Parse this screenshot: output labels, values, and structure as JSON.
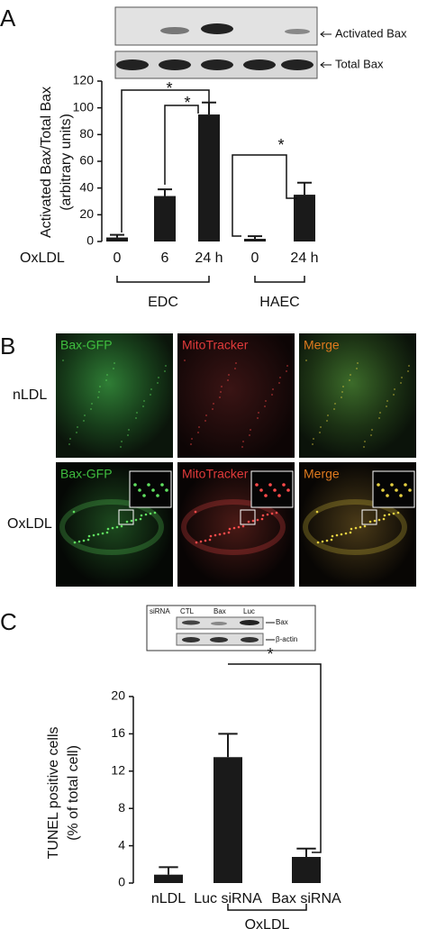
{
  "panel_labels": [
    "A",
    "B",
    "C"
  ],
  "chart_data": [
    {
      "type": "bar",
      "blot_labels": [
        "Activated Bax",
        "Total Bax"
      ],
      "ylabel_lines": [
        "Activated Bax/Total Bax",
        "(arbitrary units)"
      ],
      "row_label": "OxLDL",
      "categories": [
        "0",
        "6",
        "24 h",
        "0",
        "24 h"
      ],
      "values": [
        3,
        34,
        95,
        2,
        35
      ],
      "errors": [
        2,
        5,
        9,
        2,
        9
      ],
      "color": "#1a1a1a",
      "ylim": [
        0,
        120
      ],
      "yticks": [
        0,
        20,
        40,
        60,
        80,
        100,
        120
      ],
      "groups": [
        "EDC",
        "HAEC"
      ],
      "annotations": [
        "*",
        "*",
        "*"
      ]
    },
    {
      "type": "bar",
      "blot": {
        "header": [
          "siRNA",
          "CTL",
          "Bax",
          "Luc"
        ],
        "bands": [
          "Bax",
          "β-actin"
        ]
      },
      "ylabel_lines": [
        "TUNEL positive cells",
        "(% of total cell)"
      ],
      "categories": [
        "nLDL",
        "Luc siRNA",
        "Bax siRNA"
      ],
      "values": [
        0.9,
        13.5,
        2.8
      ],
      "errors": [
        0.8,
        2.5,
        0.9
      ],
      "color": "#1a1a1a",
      "ylim": [
        0,
        20
      ],
      "yticks": [
        0,
        4,
        8,
        12,
        16,
        20
      ],
      "groups": [
        "OxLDL"
      ],
      "annotations": [
        "*"
      ]
    }
  ],
  "microscopy": {
    "channels": [
      "Bax-GFP",
      "MitoTracker",
      "Merge"
    ],
    "rows": [
      "nLDL",
      "OxLDL"
    ]
  }
}
